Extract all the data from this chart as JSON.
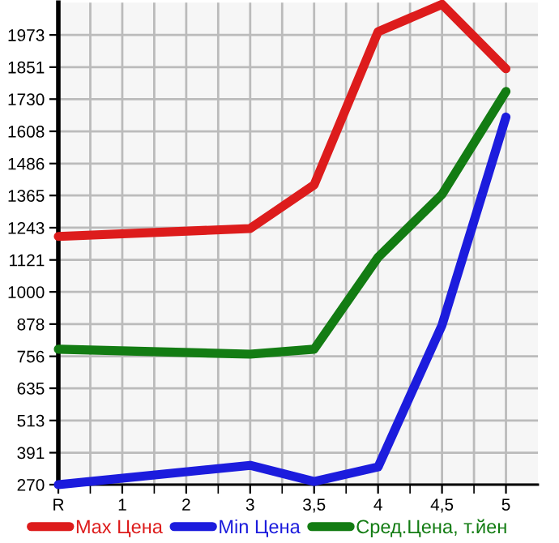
{
  "chart_data": {
    "type": "line",
    "categories": [
      "R",
      "1",
      "2",
      "3",
      "3,5",
      "4",
      "4,5",
      "5"
    ],
    "series": [
      {
        "name": "Max Цена",
        "color": "#dd1c1c",
        "values": [
          1210,
          null,
          null,
          1240,
          1405,
          1985,
          2089,
          1845
        ]
      },
      {
        "name": "Min Цена",
        "color": "#1c1cdd",
        "values": [
          270,
          null,
          null,
          343,
          282,
          337,
          874,
          1662
        ]
      },
      {
        "name": "Сред.Цена, т.йен",
        "color": "#137c13",
        "values": [
          783,
          null,
          null,
          764,
          783,
          1131,
          1369,
          1759
        ]
      }
    ],
    "ylim": [
      270,
      2095
    ],
    "yticks": [
      270,
      391,
      513,
      635,
      756,
      878,
      1000,
      1121,
      1243,
      1365,
      1486,
      1608,
      1730,
      1851,
      1973
    ],
    "grid": true,
    "legend": "bottom",
    "marker": "none",
    "line_style": "solid"
  }
}
